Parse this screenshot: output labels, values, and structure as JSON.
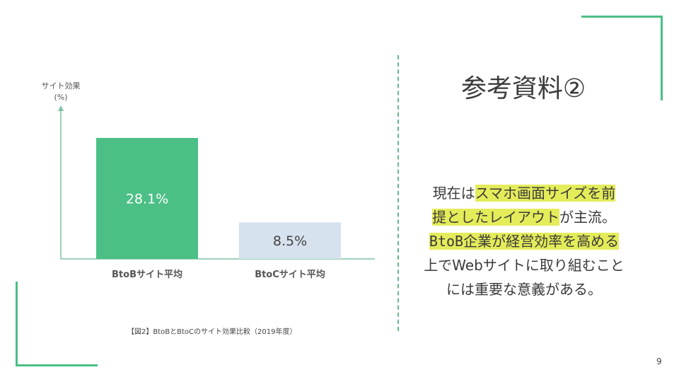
{
  "colors": {
    "accent": "#4bbf85",
    "bar_btob": "#4bbf85",
    "bar_btoc": "#d6e2ee",
    "axis": "#7cc4a2"
  },
  "chart_data": {
    "type": "bar",
    "categories": [
      "BtoBサイト平均",
      "BtoCサイト平均"
    ],
    "values": [
      28.1,
      8.5
    ],
    "value_labels": [
      "28.1%",
      "8.5%"
    ],
    "ylabel": "サイト効果",
    "yunit": "(%)",
    "ylim": [
      0,
      35
    ],
    "grid": false,
    "legend": "none",
    "caption": "【図2】BtoBとBtoCのサイト効果比較（2019年度）"
  },
  "slide": {
    "title": "参考資料②",
    "body": {
      "line1_plain": "現在は",
      "line1_hl": "スマホ画面サイズを前",
      "line2_hl": "提としたレイアウト",
      "line2_plain": "が主流。",
      "line3_hl": "BtoB企業が経営効率を高める",
      "line4": "上でWebサイトに取り組むこと",
      "line5": "には重要な意義がある。"
    },
    "page_number": "9"
  }
}
